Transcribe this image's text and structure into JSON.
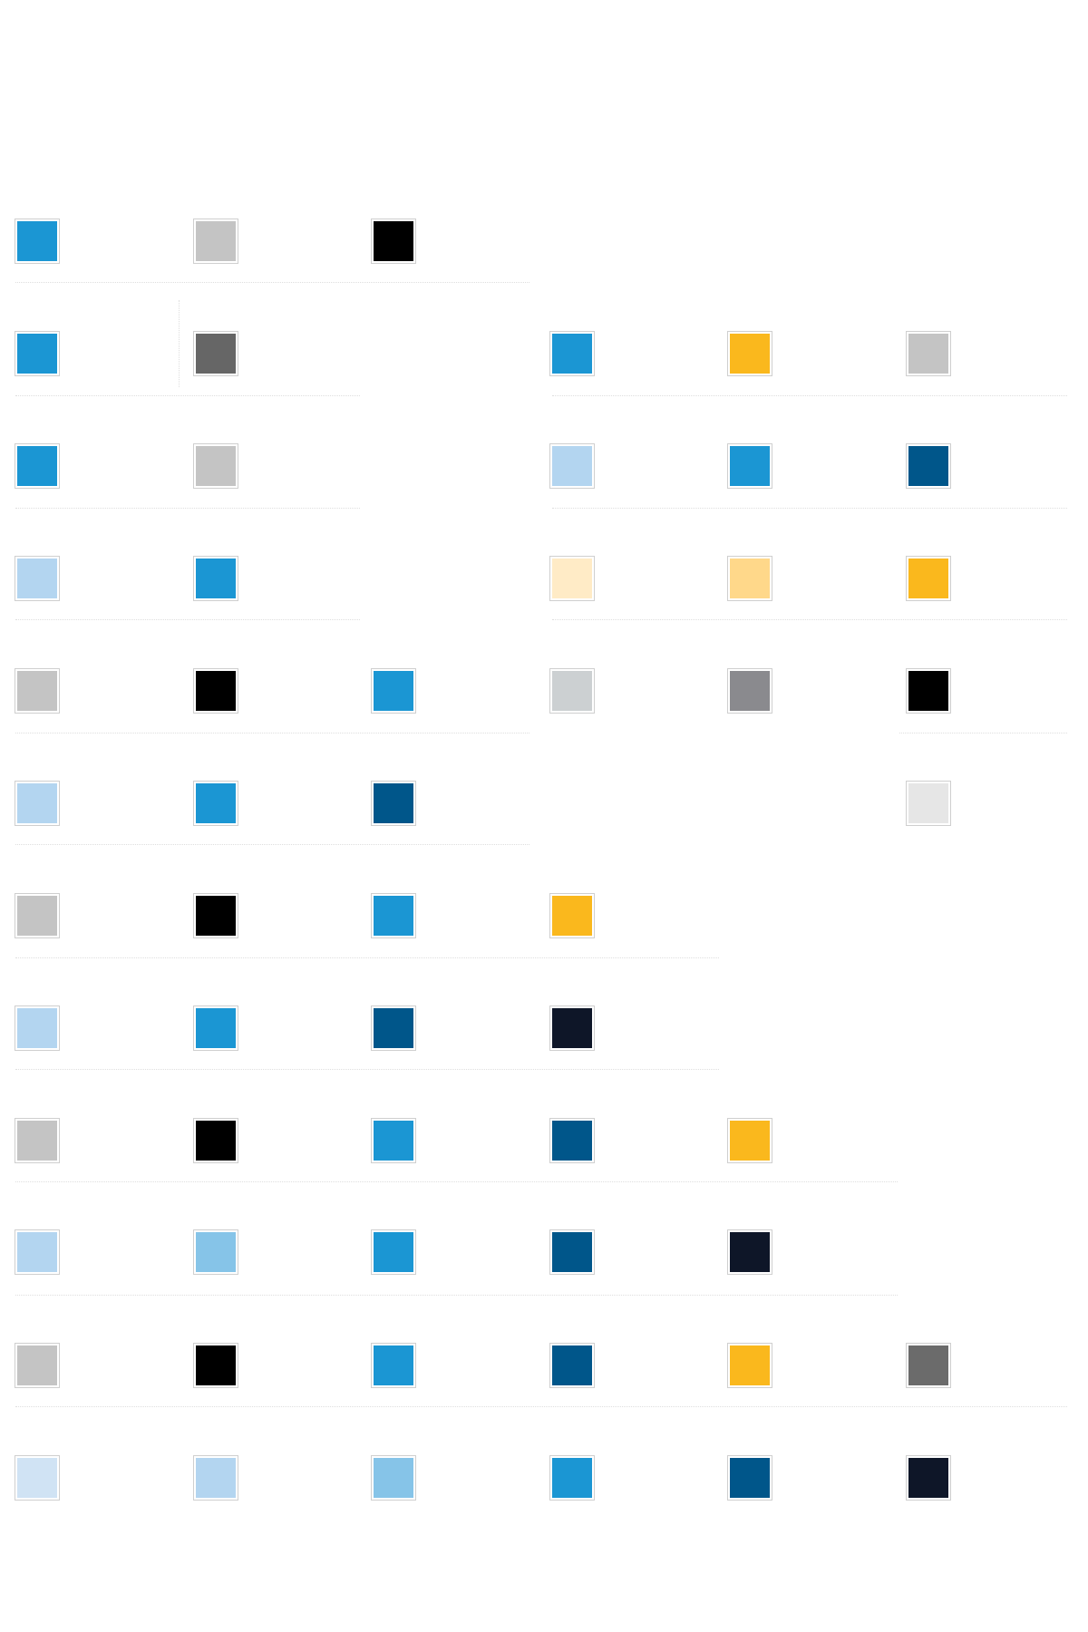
{
  "palettes": [
    {
      "id": "p1",
      "colors": [
        "#1b96d3",
        "#c4c4c4",
        "#000000"
      ]
    },
    {
      "id": "p2",
      "colors": [
        "#1b96d3",
        "#666666"
      ]
    },
    {
      "id": "p3",
      "colors": [
        "#1b96d3",
        "#fab81d",
        "#c4c4c4"
      ]
    },
    {
      "id": "p4",
      "colors": [
        "#1b96d3",
        "#c4c4c4"
      ]
    },
    {
      "id": "p5",
      "colors": [
        "#b3d5f0",
        "#1b96d3",
        "#00568a"
      ]
    },
    {
      "id": "p6",
      "colors": [
        "#b3d5f0",
        "#1b96d3"
      ]
    },
    {
      "id": "p7",
      "colors": [
        "#ffebc6",
        "#ffd88a",
        "#fab81d"
      ]
    },
    {
      "id": "p8",
      "colors": [
        "#c4c4c4",
        "#000000",
        "#1b96d3"
      ]
    },
    {
      "id": "p9",
      "colors": [
        "#ccd0d2",
        "#8a8a8e",
        "#000000"
      ]
    },
    {
      "id": "p10",
      "colors": [
        "#b3d5f0",
        "#1b96d3",
        "#00568a"
      ]
    },
    {
      "id": "p11",
      "colors": [
        "#e6e6e6"
      ]
    },
    {
      "id": "p12",
      "colors": [
        "#c4c4c4",
        "#000000",
        "#1b96d3",
        "#fab81d"
      ]
    },
    {
      "id": "p13",
      "colors": [
        "#b3d5f0",
        "#1b96d3",
        "#00568a",
        "#0e1628"
      ]
    },
    {
      "id": "p14",
      "colors": [
        "#c4c4c4",
        "#000000",
        "#1b96d3",
        "#00568a",
        "#fab81d"
      ]
    },
    {
      "id": "p15",
      "colors": [
        "#b3d5f0",
        "#86c4e8",
        "#1b96d3",
        "#00568a",
        "#0e1628"
      ]
    },
    {
      "id": "p16",
      "colors": [
        "#c4c4c4",
        "#000000",
        "#1b96d3",
        "#00568a",
        "#fab81d",
        "#6b6b6b"
      ]
    },
    {
      "id": "p17",
      "colors": [
        "#d0e3f4",
        "#b3d5f0",
        "#86c4e8",
        "#1b96d3",
        "#00568a",
        "#0e1628"
      ]
    }
  ]
}
